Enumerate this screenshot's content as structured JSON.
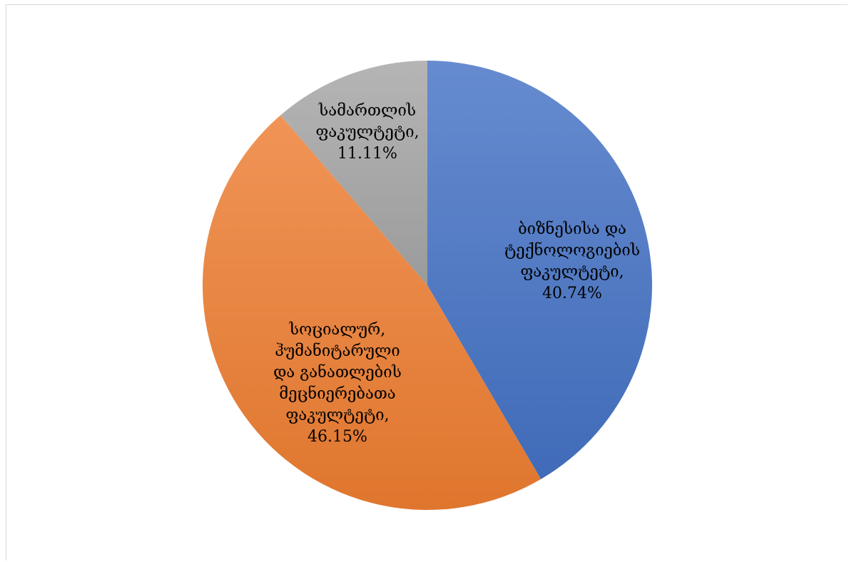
{
  "chart_data": {
    "type": "pie",
    "title": "",
    "slices": [
      {
        "label_lines": [
          "ბიზნესისა და",
          "ტექნოლოგიების",
          "ფაკულტეტი,",
          "40.74%"
        ],
        "value": 40.74,
        "color": "#4472c4"
      },
      {
        "label_lines": [
          "სოციალურ,",
          "ჰუმანიტარული",
          "და განათლების",
          "მეცნიერებათა",
          "ფაკულტეტი,",
          "46.15%"
        ],
        "value": 46.15,
        "color": "#ed7d31"
      },
      {
        "label_lines": [
          "სამართლის",
          "ფაკულტეტი,",
          "11.11%"
        ],
        "value": 11.11,
        "color": "#a5a5a5"
      }
    ],
    "legend": "none"
  }
}
